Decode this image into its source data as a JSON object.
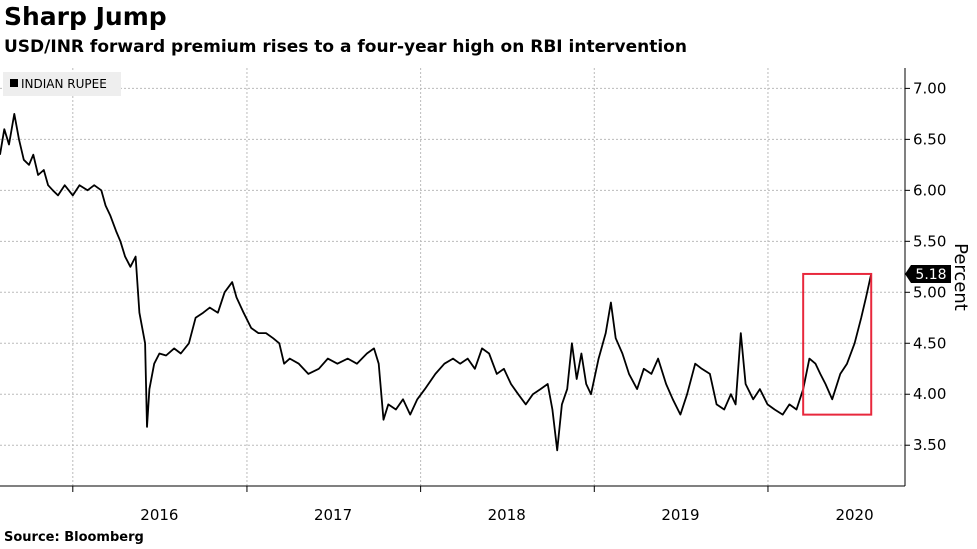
{
  "header": {
    "title": "Sharp Jump",
    "subtitle": "USD/INR forward premium rises to a four-year high on RBI intervention"
  },
  "footer": {
    "source": "Source: Bloomberg"
  },
  "colors": {
    "line": "#000000",
    "grid": "#bbbbbb",
    "highlight_box": "#e8283c",
    "legend_bg": "#eeeeee"
  },
  "chart_data": {
    "type": "line",
    "title": "Sharp Jump",
    "subtitle": "USD/INR forward premium rises to a four-year high on RBI intervention",
    "xlabel": "",
    "ylabel": "Percent",
    "x_tick_labels": [
      "2016",
      "2017",
      "2018",
      "2019",
      "2020"
    ],
    "y_tick_labels": [
      "3.50",
      "4.00",
      "4.50",
      "5.00",
      "5.50",
      "6.00",
      "6.50",
      "7.00"
    ],
    "y_ticks": [
      3.5,
      4.0,
      4.5,
      5.0,
      5.5,
      6.0,
      6.5,
      7.0
    ],
    "ylim": [
      3.1,
      7.2
    ],
    "xlim": [
      "2015-08-01",
      "2020-10-15"
    ],
    "grid": true,
    "legend": {
      "position": "top-left",
      "entries": [
        "INDIAN RUPEE"
      ]
    },
    "last_value_label": "5.18",
    "highlight": {
      "x_range": [
        "2020-03-15",
        "2020-08-05"
      ],
      "y_range": [
        3.8,
        5.18
      ]
    },
    "series": [
      {
        "name": "INDIAN RUPEE",
        "points": [
          [
            "2015-08-01",
            6.35
          ],
          [
            "2015-08-10",
            6.6
          ],
          [
            "2015-08-20",
            6.45
          ],
          [
            "2015-08-31",
            6.75
          ],
          [
            "2015-09-10",
            6.5
          ],
          [
            "2015-09-20",
            6.3
          ],
          [
            "2015-10-01",
            6.25
          ],
          [
            "2015-10-10",
            6.35
          ],
          [
            "2015-10-20",
            6.15
          ],
          [
            "2015-11-01",
            6.2
          ],
          [
            "2015-11-10",
            6.05
          ],
          [
            "2015-11-20",
            6.0
          ],
          [
            "2015-12-01",
            5.95
          ],
          [
            "2015-12-15",
            6.05
          ],
          [
            "2016-01-01",
            5.95
          ],
          [
            "2016-01-15",
            6.05
          ],
          [
            "2016-02-01",
            6.0
          ],
          [
            "2016-02-15",
            6.05
          ],
          [
            "2016-03-01",
            6.0
          ],
          [
            "2016-03-10",
            5.85
          ],
          [
            "2016-03-20",
            5.75
          ],
          [
            "2016-04-01",
            5.6
          ],
          [
            "2016-04-10",
            5.5
          ],
          [
            "2016-04-20",
            5.35
          ],
          [
            "2016-05-01",
            5.25
          ],
          [
            "2016-05-12",
            5.35
          ],
          [
            "2016-05-20",
            4.8
          ],
          [
            "2016-06-01",
            4.5
          ],
          [
            "2016-06-05",
            3.68
          ],
          [
            "2016-06-10",
            4.05
          ],
          [
            "2016-06-20",
            4.3
          ],
          [
            "2016-07-01",
            4.4
          ],
          [
            "2016-07-15",
            4.38
          ],
          [
            "2016-08-01",
            4.45
          ],
          [
            "2016-08-15",
            4.4
          ],
          [
            "2016-09-01",
            4.5
          ],
          [
            "2016-09-15",
            4.75
          ],
          [
            "2016-10-01",
            4.8
          ],
          [
            "2016-10-15",
            4.85
          ],
          [
            "2016-11-01",
            4.8
          ],
          [
            "2016-11-15",
            5.0
          ],
          [
            "2016-12-01",
            5.1
          ],
          [
            "2016-12-10",
            4.95
          ],
          [
            "2016-12-25",
            4.8
          ],
          [
            "2017-01-10",
            4.65
          ],
          [
            "2017-01-25",
            4.6
          ],
          [
            "2017-02-10",
            4.6
          ],
          [
            "2017-02-25",
            4.55
          ],
          [
            "2017-03-10",
            4.5
          ],
          [
            "2017-03-20",
            4.3
          ],
          [
            "2017-04-01",
            4.35
          ],
          [
            "2017-04-20",
            4.3
          ],
          [
            "2017-05-10",
            4.2
          ],
          [
            "2017-06-01",
            4.25
          ],
          [
            "2017-06-20",
            4.35
          ],
          [
            "2017-07-10",
            4.3
          ],
          [
            "2017-08-01",
            4.35
          ],
          [
            "2017-08-20",
            4.3
          ],
          [
            "2017-09-10",
            4.4
          ],
          [
            "2017-09-25",
            4.45
          ],
          [
            "2017-10-05",
            4.3
          ],
          [
            "2017-10-15",
            3.75
          ],
          [
            "2017-10-25",
            3.9
          ],
          [
            "2017-11-10",
            3.85
          ],
          [
            "2017-11-25",
            3.95
          ],
          [
            "2017-12-10",
            3.8
          ],
          [
            "2017-12-25",
            3.95
          ],
          [
            "2018-01-10",
            4.05
          ],
          [
            "2018-02-01",
            4.2
          ],
          [
            "2018-02-20",
            4.3
          ],
          [
            "2018-03-10",
            4.35
          ],
          [
            "2018-03-25",
            4.3
          ],
          [
            "2018-04-10",
            4.35
          ],
          [
            "2018-04-25",
            4.25
          ],
          [
            "2018-05-10",
            4.45
          ],
          [
            "2018-05-25",
            4.4
          ],
          [
            "2018-06-10",
            4.2
          ],
          [
            "2018-06-25",
            4.25
          ],
          [
            "2018-07-10",
            4.1
          ],
          [
            "2018-07-25",
            4.0
          ],
          [
            "2018-08-10",
            3.9
          ],
          [
            "2018-08-25",
            4.0
          ],
          [
            "2018-09-10",
            4.05
          ],
          [
            "2018-09-25",
            4.1
          ],
          [
            "2018-10-05",
            3.85
          ],
          [
            "2018-10-15",
            3.45
          ],
          [
            "2018-10-25",
            3.9
          ],
          [
            "2018-11-05",
            4.05
          ],
          [
            "2018-11-15",
            4.5
          ],
          [
            "2018-11-25",
            4.15
          ],
          [
            "2018-12-05",
            4.4
          ],
          [
            "2018-12-15",
            4.1
          ],
          [
            "2018-12-25",
            4.0
          ],
          [
            "2019-01-10",
            4.35
          ],
          [
            "2019-01-25",
            4.6
          ],
          [
            "2019-02-05",
            4.9
          ],
          [
            "2019-02-15",
            4.55
          ],
          [
            "2019-03-01",
            4.4
          ],
          [
            "2019-03-15",
            4.2
          ],
          [
            "2019-04-01",
            4.05
          ],
          [
            "2019-04-15",
            4.25
          ],
          [
            "2019-05-01",
            4.2
          ],
          [
            "2019-05-15",
            4.35
          ],
          [
            "2019-06-01",
            4.1
          ],
          [
            "2019-06-15",
            3.95
          ],
          [
            "2019-07-01",
            3.8
          ],
          [
            "2019-07-15",
            4.0
          ],
          [
            "2019-08-01",
            4.3
          ],
          [
            "2019-08-15",
            4.25
          ],
          [
            "2019-09-01",
            4.2
          ],
          [
            "2019-09-15",
            3.9
          ],
          [
            "2019-10-01",
            3.85
          ],
          [
            "2019-10-15",
            4.0
          ],
          [
            "2019-10-25",
            3.9
          ],
          [
            "2019-11-05",
            4.6
          ],
          [
            "2019-11-15",
            4.1
          ],
          [
            "2019-12-01",
            3.95
          ],
          [
            "2019-12-15",
            4.05
          ],
          [
            "2019-12-31",
            3.9
          ],
          [
            "2020-01-15",
            3.85
          ],
          [
            "2020-02-01",
            3.8
          ],
          [
            "2020-02-15",
            3.9
          ],
          [
            "2020-03-01",
            3.85
          ],
          [
            "2020-03-15",
            4.05
          ],
          [
            "2020-03-28",
            4.35
          ],
          [
            "2020-04-10",
            4.3
          ],
          [
            "2020-04-20",
            4.2
          ],
          [
            "2020-05-01",
            4.1
          ],
          [
            "2020-05-15",
            3.95
          ],
          [
            "2020-06-01",
            4.2
          ],
          [
            "2020-06-15",
            4.3
          ],
          [
            "2020-07-01",
            4.5
          ],
          [
            "2020-07-15",
            4.75
          ],
          [
            "2020-07-25",
            4.95
          ],
          [
            "2020-08-05",
            5.18
          ]
        ]
      }
    ]
  }
}
